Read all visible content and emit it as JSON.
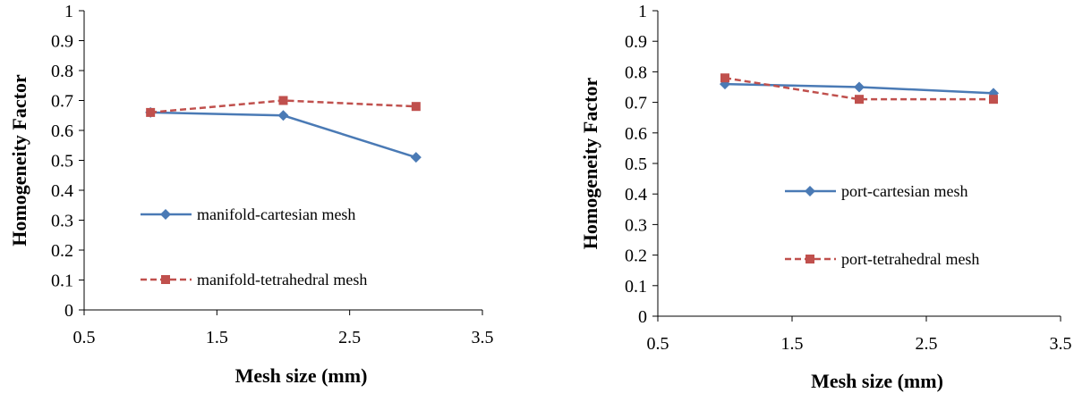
{
  "chart_data": [
    {
      "type": "line",
      "xlabel": "Mesh size (mm)",
      "ylabel": "Homogeneity Factor",
      "xlim": [
        0.5,
        3.5
      ],
      "ylim": [
        0,
        1
      ],
      "xticks": [
        "0.5",
        "1.5",
        "2.5",
        "3.5"
      ],
      "yticks": [
        "0",
        "0.1",
        "0.2",
        "0.3",
        "0.4",
        "0.5",
        "0.6",
        "0.7",
        "0.8",
        "0.9",
        "1"
      ],
      "grid": false,
      "legend_position": "left-middle",
      "series": [
        {
          "name": "manifold-cartesian mesh",
          "color": "#4a7ab5",
          "dash": "solid",
          "marker": "diamond",
          "x": [
            1,
            2,
            3
          ],
          "y": [
            0.66,
            0.65,
            0.51
          ]
        },
        {
          "name": "manifold-tetrahedral mesh",
          "color": "#c0504d",
          "dash": "dashed",
          "marker": "square",
          "x": [
            1,
            2,
            3
          ],
          "y": [
            0.66,
            0.7,
            0.68
          ]
        }
      ]
    },
    {
      "type": "line",
      "xlabel": "Mesh size (mm)",
      "ylabel": "Homogeneity Factor",
      "xlim": [
        0.5,
        3.5
      ],
      "ylim": [
        0,
        1
      ],
      "xticks": [
        "0.5",
        "1.5",
        "2.5",
        "3.5"
      ],
      "yticks": [
        "0",
        "0.1",
        "0.2",
        "0.3",
        "0.4",
        "0.5",
        "0.6",
        "0.7",
        "0.8",
        "0.9",
        "1"
      ],
      "grid": false,
      "legend_position": "center-middle",
      "series": [
        {
          "name": "port-cartesian mesh",
          "color": "#4a7ab5",
          "dash": "solid",
          "marker": "diamond",
          "x": [
            1,
            2,
            3
          ],
          "y": [
            0.76,
            0.75,
            0.73
          ]
        },
        {
          "name": "port-tetrahedral mesh",
          "color": "#c0504d",
          "dash": "dashed",
          "marker": "square",
          "x": [
            1,
            2,
            3
          ],
          "y": [
            0.78,
            0.71,
            0.71
          ]
        }
      ]
    }
  ]
}
